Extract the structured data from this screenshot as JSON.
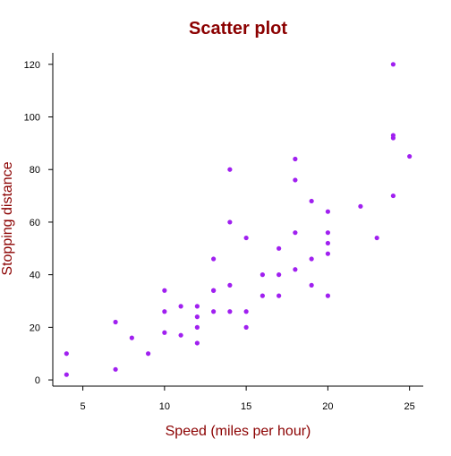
{
  "chart_data": {
    "type": "scatter",
    "title": "Scatter plot",
    "xlabel": "Speed (miles per hour)",
    "ylabel": "Stopping distance",
    "xlim": [
      3.16,
      25.84
    ],
    "ylim": [
      -2.36,
      124.36
    ],
    "x_ticks": [
      5,
      10,
      15,
      20,
      25
    ],
    "y_ticks": [
      0,
      20,
      40,
      60,
      80,
      100,
      120
    ],
    "grid": false,
    "legend": "none",
    "series": [
      {
        "x": [
          4,
          4,
          7,
          7,
          8,
          9,
          10,
          10,
          10,
          11,
          11,
          12,
          12,
          12,
          12,
          13,
          13,
          13,
          13,
          14,
          14,
          14,
          14,
          15,
          15,
          15,
          16,
          16,
          17,
          17,
          17,
          18,
          18,
          18,
          18,
          19,
          19,
          19,
          20,
          20,
          20,
          20,
          20,
          22,
          23,
          24,
          24,
          24,
          24,
          25
        ],
        "y": [
          2,
          10,
          4,
          22,
          16,
          10,
          18,
          26,
          34,
          17,
          28,
          14,
          20,
          24,
          28,
          26,
          34,
          34,
          46,
          26,
          36,
          60,
          80,
          20,
          26,
          54,
          32,
          40,
          32,
          40,
          50,
          42,
          56,
          76,
          84,
          36,
          46,
          68,
          32,
          48,
          52,
          56,
          64,
          66,
          54,
          70,
          92,
          93,
          120,
          85
        ]
      }
    ]
  },
  "colors": {
    "title": "#8b0000",
    "axis_labels": "#8b0000",
    "points": "#a020f0",
    "axes": "#000000"
  }
}
